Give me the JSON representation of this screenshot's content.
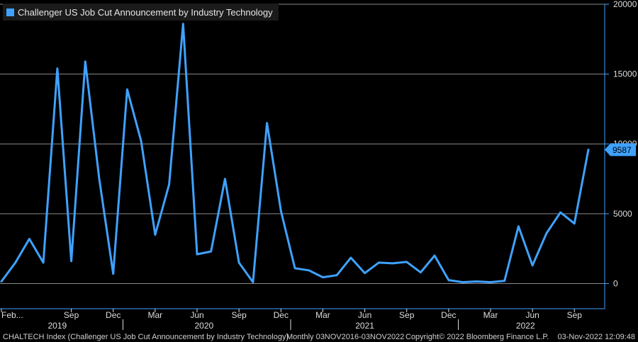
{
  "chart_data": {
    "type": "line",
    "title": "Challenger US Job Cut Announcement by Industry Technology",
    "series": [
      {
        "name": "Challenger US Job Cut Announcement by Industry Technology",
        "color": "#3fa2ff",
        "values": [
          150,
          1500,
          3200,
          1500,
          15400,
          1600,
          15900,
          7500,
          700,
          13900,
          10200,
          3500,
          7100,
          18600,
          2100,
          2300,
          7500,
          1500,
          100,
          11500,
          5200,
          1100,
          950,
          450,
          600,
          1850,
          750,
          1500,
          1450,
          1550,
          800,
          2000,
          250,
          100,
          150,
          100,
          200,
          4100,
          1300,
          3600,
          5100,
          4300,
          9587
        ]
      }
    ],
    "ylim": [
      -1800,
      20000
    ],
    "yticks": [
      0,
      5000,
      10000,
      15000,
      20000
    ],
    "ytick_labels": [
      "0",
      "5000",
      "10000",
      "15000",
      "20000"
    ],
    "last_value_label": "9587",
    "last_value_color": "#3fa2ff",
    "xticks_month": [
      {
        "label": "Feb...",
        "index": 0
      },
      {
        "label": "Sep",
        "index": 5
      },
      {
        "label": "Dec",
        "index": 8
      },
      {
        "label": "Mar",
        "index": 11
      },
      {
        "label": "Jun",
        "index": 14
      },
      {
        "label": "Sep",
        "index": 17
      },
      {
        "label": "Dec",
        "index": 20
      },
      {
        "label": "Mar",
        "index": 23
      },
      {
        "label": "Jun",
        "index": 26
      },
      {
        "label": "Sep",
        "index": 29
      },
      {
        "label": "Dec",
        "index": 32
      },
      {
        "label": "Mar",
        "index": 35
      },
      {
        "label": "Jun",
        "index": 38
      },
      {
        "label": "Sep",
        "index": 41
      }
    ],
    "xticks_year": [
      {
        "label": "2019",
        "index": 4,
        "divider_at": 9
      },
      {
        "label": "2020",
        "index": 14.5,
        "divider_at": 21
      },
      {
        "label": "2021",
        "index": 26,
        "divider_at": 33
      },
      {
        "label": "2022",
        "index": 37.5,
        "divider_at": null
      }
    ],
    "grid": true,
    "legend": "top-left"
  },
  "footer": {
    "ticker": "CHALTECH Index (Challenger US Job Cut Announcement by Industry Technology)",
    "range": "Monthly 03NOV2016-03NOV2022",
    "copyright": "Copyright© 2022 Bloomberg Finance L.P.",
    "date": "03-Nov-2022 12:09:48"
  },
  "colors": {
    "background": "#000000",
    "grid": "#8a8a8a",
    "axis": "#3fa2ff",
    "line": "#3fa2ff",
    "text": "#dddddd"
  }
}
